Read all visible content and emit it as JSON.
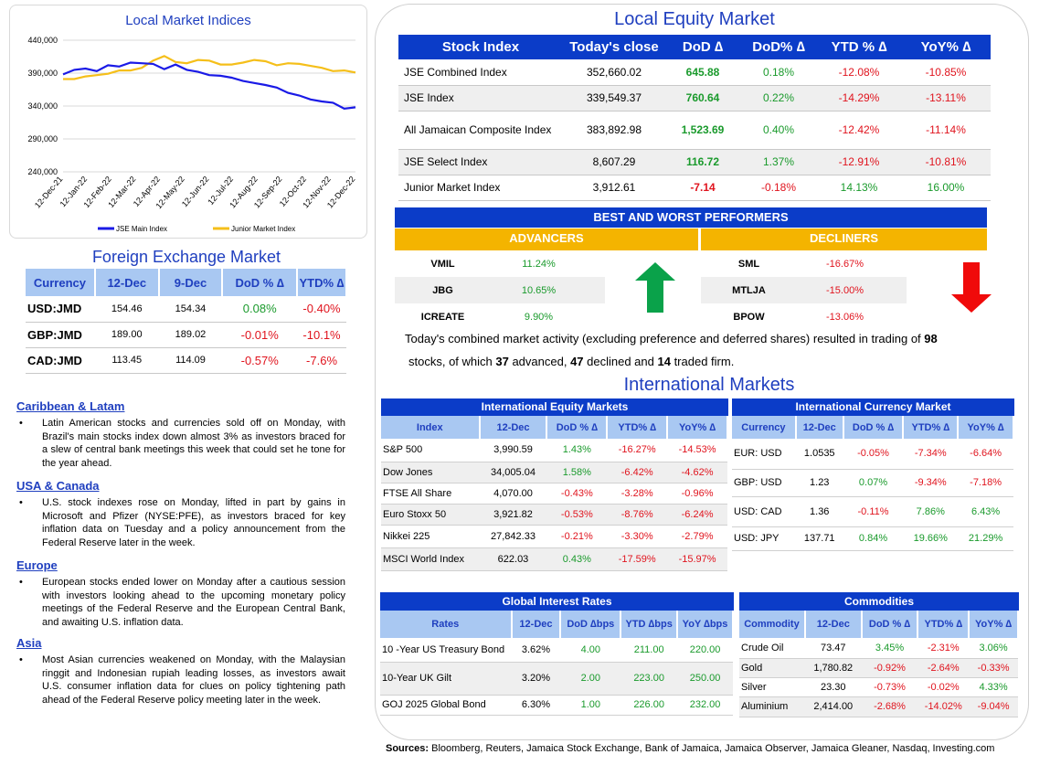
{
  "chart": {
    "title": "Local Market Indices",
    "legend": [
      "JSE Main Index",
      "Junior Market Index"
    ],
    "colors": {
      "main": "#1a1ae6",
      "junior": "#f5bf1a"
    }
  },
  "chart_data": {
    "type": "line",
    "title": "Local Market Indices",
    "x_ticks": [
      "12-Dec-21",
      "12-Jan-22",
      "12-Feb-22",
      "12-Mar-22",
      "12-Apr-22",
      "12-May-22",
      "12-Jun-22",
      "12-Jul-22",
      "12-Aug-22",
      "12-Sep-22",
      "12-Oct-22",
      "12-Nov-22",
      "12-Dec-22"
    ],
    "y_ticks": [
      "440,000",
      "390,000",
      "340,000",
      "290,000",
      "240,000"
    ],
    "ylim": [
      240000,
      440000
    ],
    "series": [
      {
        "name": "JSE Main Index",
        "values": [
          388000,
          395000,
          397000,
          393000,
          402000,
          400000,
          406000,
          405000,
          404000,
          396000,
          403000,
          395000,
          392000,
          387000,
          386000,
          383000,
          378000,
          375000,
          372000,
          368000,
          360000,
          356000,
          350000,
          347000,
          345000,
          336000,
          338000
        ]
      },
      {
        "name": "Junior Market Index",
        "values": [
          381000,
          381000,
          385000,
          387000,
          389000,
          394000,
          394000,
          398000,
          409000,
          416000,
          407000,
          405000,
          410000,
          409000,
          403000,
          403000,
          406000,
          410000,
          408000,
          402000,
          405000,
          404000,
          401000,
          398000,
          393000,
          394000,
          391000
        ]
      }
    ],
    "legend_position": "bottom"
  },
  "local_equity": {
    "title": "Local Equity Market",
    "headers": [
      "Stock Index",
      "Today's close",
      "DoD  ∆",
      "DoD% ∆",
      "YTD % ∆",
      "YoY% ∆"
    ],
    "rows": [
      {
        "name": "JSE Combined Index",
        "close": "352,660.02",
        "dod": "645.88",
        "dodp": "0.18%",
        "ytd": "-12.08%",
        "yoy": "-10.85%"
      },
      {
        "name": "JSE Index",
        "close": "339,549.37",
        "dod": "760.64",
        "dodp": "0.22%",
        "ytd": "-14.29%",
        "yoy": "-13.11%"
      },
      {
        "name": "All Jamaican Composite Index",
        "close": "383,892.98",
        "dod": "1,523.69",
        "dodp": "0.40%",
        "ytd": "-12.42%",
        "yoy": "-11.14%"
      },
      {
        "name": "JSE Select Index",
        "close": "8,607.29",
        "dod": "116.72",
        "dodp": "1.37%",
        "ytd": "-12.91%",
        "yoy": "-10.81%"
      },
      {
        "name": "Junior Market Index",
        "close": "3,912.61",
        "dod": "-7.14",
        "dodp": "-0.18%",
        "ytd": "14.13%",
        "yoy": "16.00%"
      }
    ]
  },
  "performers": {
    "title": "BEST AND WORST PERFORMERS",
    "advancers_label": "ADVANCERS",
    "decliners_label": "DECLINERS",
    "advancers": [
      {
        "name": "VMIL",
        "val": "11.24%"
      },
      {
        "name": "JBG",
        "val": "10.65%"
      },
      {
        "name": "ICREATE",
        "val": "9.90%"
      }
    ],
    "decliners": [
      {
        "name": "SML",
        "val": "-16.67%"
      },
      {
        "name": "MTLJA",
        "val": "-15.00%"
      },
      {
        "name": "BPOW",
        "val": "-13.06%"
      }
    ]
  },
  "summary": {
    "p1": "Today's combined market activity (excluding preference and deferred shares) resulted in trading of ",
    "n1": "98",
    "p2": "stocks, of which ",
    "n2": "37",
    "p3": " advanced, ",
    "n3": "47",
    "p4": " declined and ",
    "n4": "14",
    "p5": " traded firm."
  },
  "fx": {
    "title": "Foreign Exchange Market",
    "headers": [
      "Currency",
      "12-Dec",
      "9-Dec",
      "DoD % ∆",
      "YTD% ∆"
    ],
    "rows": [
      {
        "cur": "USD:JMD",
        "a": "154.46",
        "b": "154.34",
        "dod": "0.08%",
        "ytd": "-0.40%"
      },
      {
        "cur": "GBP:JMD",
        "a": "189.00",
        "b": "189.02",
        "dod": "-0.01%",
        "ytd": "-10.1%"
      },
      {
        "cur": "CAD:JMD",
        "a": "113.45",
        "b": "114.09",
        "dod": "-0.57%",
        "ytd": "-7.6%"
      }
    ]
  },
  "news": [
    {
      "head": "Caribbean & Latam",
      "text": "Latin American stocks and currencies sold off on Monday, with Brazil's main stocks index down almost 3% as investors braced for a slew of central bank meetings this week that could set he tone for the year ahead."
    },
    {
      "head": "USA & Canada",
      "text": "U.S. stock indexes rose on Monday, lifted in part by gains in Microsoft and Pfizer (NYSE:PFE), as investors braced for key inflation data on Tuesday and a policy announcement from the Federal Reserve later in the week."
    },
    {
      "head": "Europe",
      "text": "European stocks ended lower on Monday after a cautious session with investors looking ahead to the upcoming monetary policy meetings of the Federal Reserve and the European Central Bank, and awaiting U.S. inflation data."
    },
    {
      "head": "Asia",
      "text": "Most Asian currencies weakened on Monday, with the Malaysian ringgit and Indonesian rupiah leading losses, as investors await U.S. consumer inflation data for clues on policy tightening path ahead of the Federal Reserve policy meeting later in the week."
    }
  ],
  "intl": {
    "title": "International Markets",
    "equity": {
      "title": "International Equity Markets",
      "headers": [
        "Index",
        "12-Dec",
        "DoD % ∆",
        "YTD% ∆",
        "YoY% ∆"
      ],
      "rows": [
        {
          "name": "S&P 500",
          "v": "3,990.59",
          "dod": "1.43%",
          "ytd": "-16.27%",
          "yoy": "-14.53%"
        },
        {
          "name": "Dow Jones",
          "v": "34,005.04",
          "dod": "1.58%",
          "ytd": "-6.42%",
          "yoy": "-4.62%"
        },
        {
          "name": "FTSE All Share",
          "v": "4,070.00",
          "dod": "-0.43%",
          "ytd": "-3.28%",
          "yoy": "-0.96%"
        },
        {
          "name": "Euro Stoxx 50",
          "v": "3,921.82",
          "dod": "-0.53%",
          "ytd": "-8.76%",
          "yoy": "-6.24%"
        },
        {
          "name": "Nikkei 225",
          "v": "27,842.33",
          "dod": "-0.21%",
          "ytd": "-3.30%",
          "yoy": "-2.79%"
        },
        {
          "name": "MSCI World Index",
          "v": "622.03",
          "dod": "0.43%",
          "ytd": "-17.59%",
          "yoy": "-15.97%"
        }
      ]
    },
    "currency": {
      "title": "International Currency Market",
      "headers": [
        "Currency",
        "12-Dec",
        "DoD % ∆",
        "YTD% ∆",
        "YoY% ∆"
      ],
      "rows": [
        {
          "name": "EUR: USD",
          "v": "1.0535",
          "dod": "-0.05%",
          "ytd": "-7.34%",
          "yoy": "-6.64%"
        },
        {
          "name": "GBP: USD",
          "v": "1.23",
          "dod": "0.07%",
          "ytd": "-9.34%",
          "yoy": "-7.18%"
        },
        {
          "name": "USD: CAD",
          "v": "1.36",
          "dod": "-0.11%",
          "ytd": "7.86%",
          "yoy": "6.43%"
        },
        {
          "name": "USD: JPY",
          "v": "137.71",
          "dod": "0.84%",
          "ytd": "19.66%",
          "yoy": "21.29%"
        }
      ]
    },
    "rates": {
      "title": "Global Interest Rates",
      "headers": [
        "Rates",
        "12-Dec",
        "DoD ∆bps",
        "YTD ∆bps",
        "YoY ∆bps"
      ],
      "rows": [
        {
          "name": "10 -Year US Treasury Bond",
          "v": "3.62%",
          "dod": "4.00",
          "ytd": "211.00",
          "yoy": "220.00"
        },
        {
          "name": "10-Year UK Gilt",
          "v": "3.20%",
          "dod": "2.00",
          "ytd": "223.00",
          "yoy": "250.00"
        },
        {
          "name": "GOJ 2025 Global Bond",
          "v": "6.30%",
          "dod": "1.00",
          "ytd": "226.00",
          "yoy": "232.00"
        }
      ]
    },
    "commodities": {
      "title": "Commodities",
      "headers": [
        "Commodity",
        "12-Dec",
        "DoD % ∆",
        "YTD% ∆",
        "YoY% ∆"
      ],
      "rows": [
        {
          "name": "Crude Oil",
          "v": "73.47",
          "dod": "3.45%",
          "ytd": "-2.31%",
          "yoy": "3.06%"
        },
        {
          "name": "Gold",
          "v": "1,780.82",
          "dod": "-0.92%",
          "ytd": "-2.64%",
          "yoy": "-0.33%"
        },
        {
          "name": "Silver",
          "v": "23.30",
          "dod": "-0.73%",
          "ytd": "-0.02%",
          "yoy": "4.33%"
        },
        {
          "name": "Aluminium",
          "v": "2,414.00",
          "dod": "-2.68%",
          "ytd": "-14.02%",
          "yoy": "-9.04%"
        }
      ]
    }
  },
  "sources": {
    "label": "Sources:",
    "text": " Bloomberg, Reuters, Jamaica Stock Exchange, Bank of Jamaica, Jamaica Observer, Jamaica Gleaner, Nasdaq, Investing.com"
  }
}
